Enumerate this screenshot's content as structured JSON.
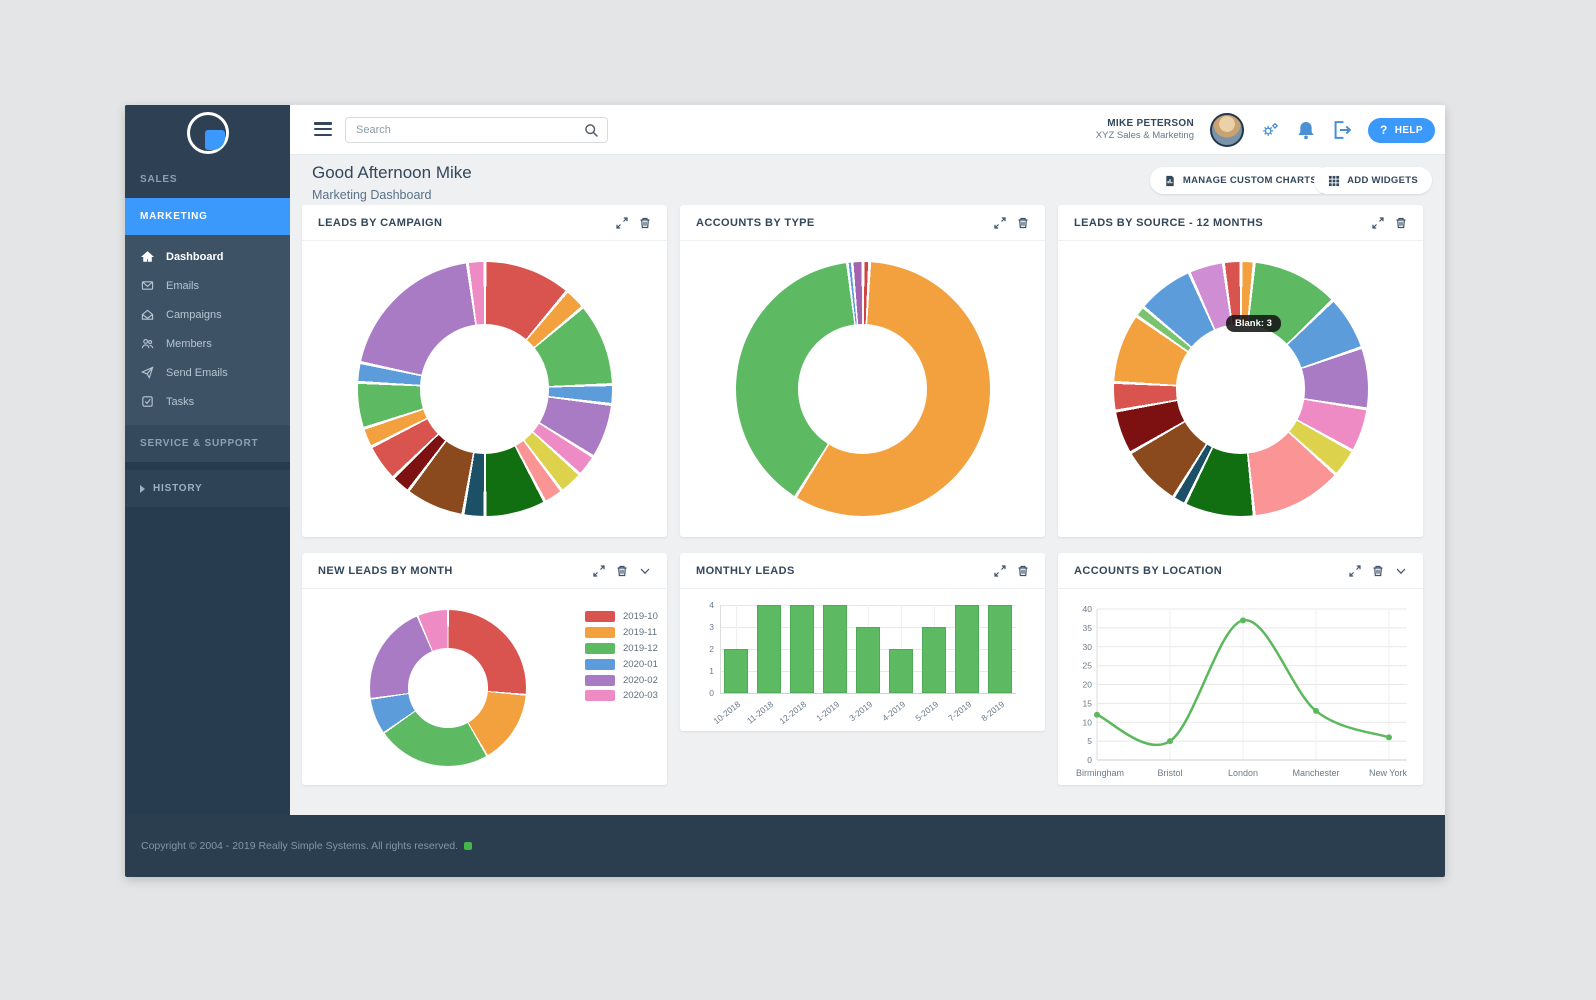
{
  "topbar": {
    "search_placeholder": "Search",
    "user_name": "MIKE PETERSON",
    "user_org": "XYZ Sales & Marketing",
    "help_label": "HELP"
  },
  "sidebar": {
    "sales_label": "SALES",
    "marketing_label": "MARKETING",
    "service_label": "SERVICE & SUPPORT",
    "history_label": "HISTORY",
    "menu": [
      {
        "label": "Dashboard",
        "active": true
      },
      {
        "label": "Emails"
      },
      {
        "label": "Campaigns"
      },
      {
        "label": "Members"
      },
      {
        "label": "Send Emails"
      },
      {
        "label": "Tasks"
      }
    ]
  },
  "header": {
    "greeting": "Good Afternoon Mike",
    "subtitle": "Marketing Dashboard",
    "manage_charts_button": "MANAGE CUSTOM CHARTS",
    "add_widgets_button": "ADD WIDGETS"
  },
  "footer": {
    "copyright": "Copyright © 2004 - 2019 Really Simple Systems. All rights reserved."
  },
  "colors": {
    "accent_blue": "#3b99fc",
    "sidebar_dark": "#2e4154",
    "footer_dark": "#2b3e50",
    "status_green": "#45b649",
    "chart_green": "#5dba63"
  },
  "chart_data": [
    {
      "id": "leads-by-campaign",
      "title": "LEADS BY CAMPAIGN",
      "type": "pie",
      "donut": true,
      "unit": "degrees",
      "start_angle": 0,
      "segments": [
        {
          "color": "#d9534f",
          "value": 40
        },
        {
          "color": "#f2a13e",
          "value": 10
        },
        {
          "color": "#5dba63",
          "value": 38
        },
        {
          "color": "#5d9cdb",
          "value": 9
        },
        {
          "color": "#a97bc5",
          "value": 25
        },
        {
          "color": "#ee8bc5",
          "value": 10
        },
        {
          "color": "#ddd24b",
          "value": 11
        },
        {
          "color": "#fb9595",
          "value": 9
        },
        {
          "color": "#116e11",
          "value": 28
        },
        {
          "color": "#1b5066",
          "value": 10
        },
        {
          "color": "#8a4a1e",
          "value": 27
        },
        {
          "color": "#7d1010",
          "value": 9
        },
        {
          "color": "#d9534f",
          "value": 17
        },
        {
          "color": "#f2a13e",
          "value": 9
        },
        {
          "color": "#5dba63",
          "value": 21
        },
        {
          "color": "#5d9cdb",
          "value": 9
        },
        {
          "color": "#a97bc5",
          "value": 70
        },
        {
          "color": "#ee8bc5",
          "value": 8
        }
      ]
    },
    {
      "id": "accounts-by-type",
      "title": "ACCOUNTS BY TYPE",
      "type": "pie",
      "donut": true,
      "unit": "degrees",
      "start_angle": 0,
      "segments": [
        {
          "color": "#cf4444",
          "value": 3
        },
        {
          "color": "#f2a13e",
          "value": 209
        },
        {
          "color": "#5dba63",
          "value": 141
        },
        {
          "color": "#5d9cdb",
          "value": 2
        },
        {
          "color": "#a363ae",
          "value": 5
        }
      ]
    },
    {
      "id": "leads-by-source-12-months",
      "title": "LEADS BY SOURCE - 12 MONTHS",
      "type": "pie",
      "donut": true,
      "unit": "degrees",
      "start_angle": -8,
      "tooltip": "Blank: 3",
      "segments": [
        {
          "color": "#d9534f",
          "value": 8,
          "label": "Blank",
          "count": 3
        },
        {
          "color": "#f2a13e",
          "value": 6
        },
        {
          "color": "#5dba63",
          "value": 40
        },
        {
          "color": "#5d9cdb",
          "value": 25
        },
        {
          "color": "#a97bc5",
          "value": 28
        },
        {
          "color": "#ee8bc5",
          "value": 20
        },
        {
          "color": "#ddd24b",
          "value": 13
        },
        {
          "color": "#fb9595",
          "value": 42
        },
        {
          "color": "#116e11",
          "value": 32
        },
        {
          "color": "#1b5066",
          "value": 6
        },
        {
          "color": "#8a4a1e",
          "value": 28
        },
        {
          "color": "#7d1010",
          "value": 20
        },
        {
          "color": "#d9534f",
          "value": 13
        },
        {
          "color": "#f2a13e",
          "value": 32
        },
        {
          "color": "#7ac46d",
          "value": 5
        },
        {
          "color": "#5d9cdb",
          "value": 26
        },
        {
          "color": "#cf8ed4",
          "value": 16
        }
      ]
    },
    {
      "id": "new-leads-by-month",
      "title": "NEW LEADS BY MONTH",
      "type": "pie",
      "donut": true,
      "unit": "degrees",
      "start_angle": 0,
      "legend_position": "right",
      "segments": [
        {
          "label": "2019-10",
          "color": "#d9534f",
          "value": 95
        },
        {
          "label": "2019-11",
          "color": "#f2a13e",
          "value": 55
        },
        {
          "label": "2019-12",
          "color": "#5dba63",
          "value": 85
        },
        {
          "label": "2020-01",
          "color": "#5d9cdb",
          "value": 27
        },
        {
          "label": "2020-02",
          "color": "#a97bc5",
          "value": 75
        },
        {
          "label": "2020-03",
          "color": "#ee8bc5",
          "value": 23
        }
      ]
    },
    {
      "id": "monthly-leads",
      "title": "MONTHLY LEADS",
      "type": "bar",
      "categories": [
        "10-2018",
        "11-2018",
        "12-2018",
        "1-2019",
        "3-2019",
        "4-2019",
        "5-2019",
        "7-2019",
        "8-2019"
      ],
      "values": [
        2,
        4,
        4,
        4,
        3,
        2,
        3,
        4,
        4
      ],
      "ylim": [
        0,
        4
      ],
      "yticks": [
        0,
        1,
        2,
        3,
        4
      ],
      "bar_color": "#5dba63",
      "grid": true,
      "legend_position": "none"
    },
    {
      "id": "accounts-by-location",
      "title": "ACCOUNTS BY LOCATION",
      "type": "line",
      "categories": [
        "Birmingham",
        "Bristol",
        "London",
        "Manchester",
        "New York"
      ],
      "values": [
        12,
        5,
        37,
        13,
        6
      ],
      "ylim": [
        0,
        40
      ],
      "yticks": [
        0,
        5,
        10,
        15,
        20,
        25,
        30,
        35,
        40
      ],
      "line_color": "#5cb85c",
      "grid": true,
      "legend_position": "none"
    }
  ]
}
